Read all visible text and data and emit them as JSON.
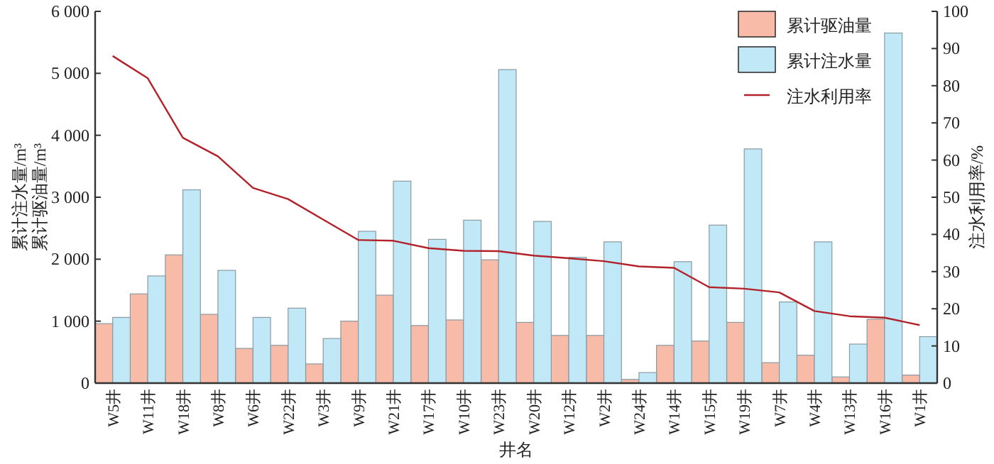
{
  "chart_data": {
    "type": "bar",
    "xlabel": "井名",
    "ylabel": "累计注水量/m³\n累计驱油量/m³",
    "y2label": "注水利用率/%",
    "categories": [
      "W5井",
      "W11井",
      "W18井",
      "W8井",
      "W6井",
      "W22井",
      "W3井",
      "W9井",
      "W21井",
      "W17井",
      "W10井",
      "W23井",
      "W20井",
      "W12井",
      "W2井",
      "W24井",
      "W14井",
      "W15井",
      "W19井",
      "W7井",
      "W4井",
      "W13井",
      "W16井",
      "W1井"
    ],
    "series": [
      {
        "name": "累计驱油量",
        "color": "#f7bba7",
        "values": [
          960,
          1440,
          2070,
          1110,
          560,
          610,
          310,
          1000,
          1420,
          930,
          1020,
          1990,
          980,
          770,
          770,
          60,
          610,
          680,
          980,
          330,
          450,
          100,
          1030,
          130
        ]
      },
      {
        "name": "累计注水量",
        "color": "#c0e8f7",
        "values": [
          1060,
          1730,
          3120,
          1820,
          1060,
          1210,
          720,
          2450,
          3260,
          2320,
          2630,
          5060,
          2610,
          2030,
          2280,
          170,
          1960,
          2550,
          3780,
          1310,
          2280,
          630,
          5650,
          750
        ]
      },
      {
        "name": "注水利用率",
        "type": "line",
        "axis": "y2",
        "color": "#b2222a",
        "values": [
          88,
          82,
          66,
          61,
          52.5,
          49.5,
          44,
          38.5,
          38.3,
          36.3,
          35.6,
          35.5,
          34.3,
          33.6,
          32.8,
          31.4,
          31,
          25.8,
          25.4,
          24.4,
          19.4,
          18,
          17.6,
          15.6
        ]
      }
    ],
    "ylim": [
      0,
      6000
    ],
    "yticks": [
      0,
      {
        "value": 1000,
        "label": "1 000"
      },
      {
        "value": 2000,
        "label": "2 000"
      },
      {
        "value": 3000,
        "label": "3 000"
      },
      {
        "value": 4000,
        "label": "4 000"
      },
      {
        "value": 5000,
        "label": "5 000"
      },
      {
        "value": 6000,
        "label": "6 000"
      }
    ],
    "y2lim": [
      0,
      100
    ],
    "y2ticks": [
      0,
      10,
      20,
      30,
      40,
      50,
      60,
      70,
      80,
      90,
      100
    ],
    "legend": "top right"
  }
}
